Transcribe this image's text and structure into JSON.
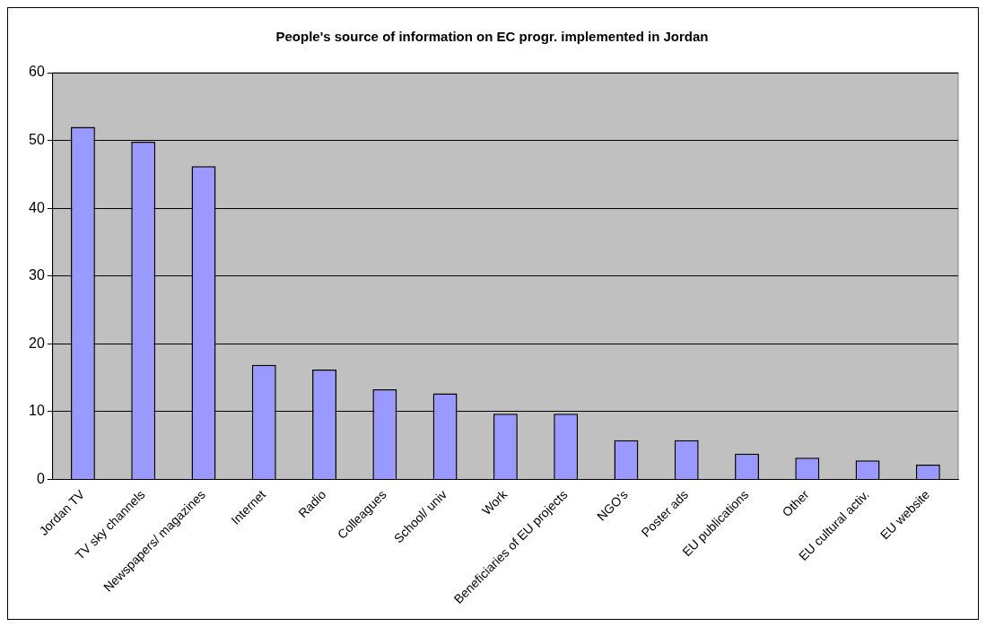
{
  "chart_data": {
    "type": "bar",
    "title": "People's source of information on EC progr. implemented in Jordan",
    "categories": [
      "Jordan TV",
      "TV sky channels",
      "Newspapers/ magazines",
      "Internet",
      "Radio",
      "Colleagues",
      "School/ univ",
      "Work",
      "Beneficiaries of EU projects",
      "NGO's",
      "Poster ads",
      "EU publications",
      "Other",
      "EU cultural activ.",
      "EU website"
    ],
    "values": [
      52,
      49.8,
      46.2,
      16.9,
      16.2,
      13.3,
      12.7,
      9.7,
      9.7,
      5.8,
      5.8,
      3.8,
      3.2,
      2.8,
      2.2
    ],
    "color": "#9999ff",
    "ylim": [
      0,
      60
    ],
    "yticks": [
      0,
      10,
      20,
      30,
      40,
      50,
      60
    ],
    "grid": "y",
    "legend": false
  }
}
